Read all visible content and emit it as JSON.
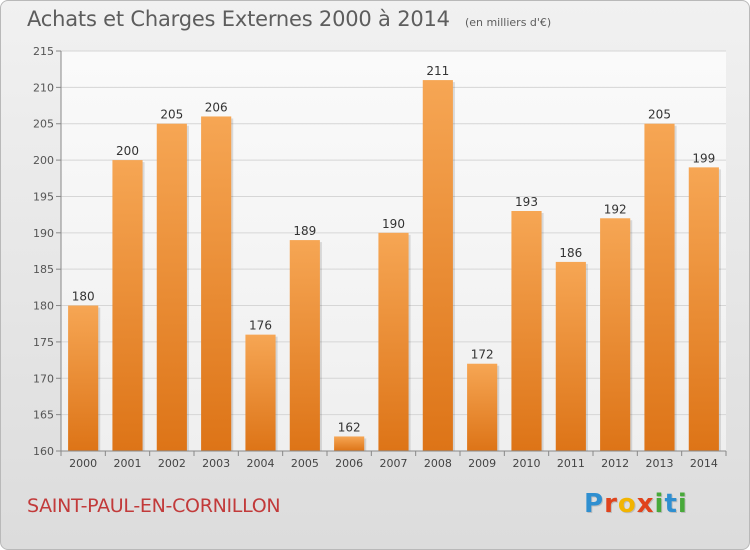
{
  "header": {
    "title": "Achats et Charges Externes 2000 à 2014",
    "unit": "(en milliers d'€)"
  },
  "footer": {
    "place": "SAINT-PAUL-EN-CORNILLON",
    "brand_letters": [
      "P",
      "r",
      "o",
      "x",
      "i",
      "t",
      "i"
    ],
    "brand_colors": [
      "#2f8fd0",
      "#e0431c",
      "#f2b400",
      "#e0431c",
      "#48a93a",
      "#2f8fd0",
      "#48a93a"
    ]
  },
  "chart_data": {
    "type": "bar",
    "categories": [
      "2000",
      "2001",
      "2002",
      "2003",
      "2004",
      "2005",
      "2006",
      "2007",
      "2008",
      "2009",
      "2010",
      "2011",
      "2012",
      "2013",
      "2014"
    ],
    "values": [
      180,
      200,
      205,
      206,
      176,
      189,
      162,
      190,
      211,
      172,
      193,
      186,
      192,
      205,
      199
    ],
    "ylim": [
      160,
      215
    ],
    "yticks": [
      160,
      165,
      170,
      175,
      180,
      185,
      190,
      195,
      200,
      205,
      210,
      215
    ],
    "grid": true,
    "bar_color": "#f39c45",
    "bar_color_dark": "#de7a18"
  }
}
